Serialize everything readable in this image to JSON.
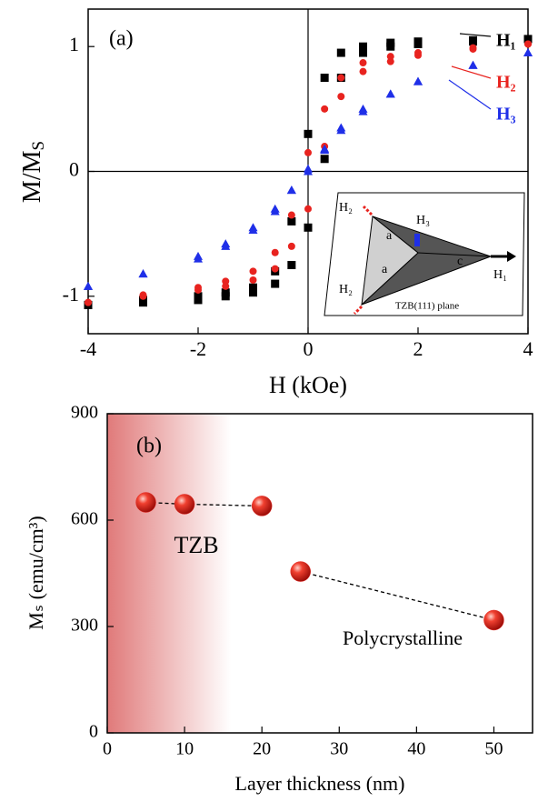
{
  "chart_data": [
    {
      "type": "scatter",
      "label": "(a)",
      "x_label": "H (kOe)",
      "y_label": [
        "M/M",
        "S"
      ],
      "xlim": [
        -4,
        4
      ],
      "xticks": [
        -4,
        -2,
        0,
        2,
        4
      ],
      "ylim": [
        -1.3,
        1.3
      ],
      "yticks": [
        -1,
        0,
        1
      ],
      "zero_lines": true,
      "series": [
        {
          "name": "H₁",
          "color": "#000000",
          "marker": "square",
          "x": [
            -4,
            -3,
            -2,
            -1.5,
            -1,
            -0.6,
            -0.3,
            0,
            0.3,
            0.6,
            1,
            1.5,
            2,
            3,
            4,
            4,
            3,
            2,
            1.5,
            1,
            0.6,
            0.3,
            0,
            -0.3,
            -0.6,
            -1,
            -1.5,
            -2,
            -3,
            -4
          ],
          "values": [
            -1.07,
            -1.05,
            -1.03,
            -1.0,
            -0.97,
            -0.9,
            -0.75,
            -0.45,
            0.1,
            0.75,
            0.95,
            1.0,
            1.02,
            1.04,
            1.06,
            1.06,
            1.05,
            1.04,
            1.03,
            1.0,
            0.95,
            0.75,
            0.3,
            -0.4,
            -0.8,
            -0.93,
            -0.97,
            -1.0,
            -1.03,
            -1.07
          ]
        },
        {
          "name": "H₂",
          "color": "#e8231f",
          "marker": "circle",
          "x": [
            -4,
            -3,
            -2,
            -1.5,
            -1,
            -0.6,
            -0.3,
            0,
            0.3,
            0.6,
            1,
            1.5,
            2,
            3,
            4,
            4,
            3,
            2,
            1.5,
            1,
            0.6,
            0.3,
            0,
            -0.3,
            -0.6,
            -1,
            -1.5,
            -2,
            -3,
            -4
          ],
          "values": [
            -1.05,
            -1.0,
            -0.95,
            -0.92,
            -0.87,
            -0.78,
            -0.6,
            -0.3,
            0.2,
            0.6,
            0.8,
            0.88,
            0.93,
            0.98,
            1.02,
            1.02,
            0.99,
            0.95,
            0.92,
            0.87,
            0.75,
            0.5,
            0.15,
            -0.35,
            -0.65,
            -0.8,
            -0.88,
            -0.93,
            -0.99,
            -1.05
          ]
        },
        {
          "name": "H₃",
          "color": "#1f2fe8",
          "marker": "triangle",
          "x": [
            -4,
            -3,
            -2,
            -1.5,
            -1,
            -0.6,
            -0.3,
            0,
            0.3,
            0.6,
            1,
            1.5,
            2,
            3,
            4,
            4,
            3,
            2,
            1.5,
            1,
            0.6,
            0.3,
            0,
            -0.3,
            -0.6,
            -1,
            -1.5,
            -2,
            -3,
            -4
          ],
          "values": [
            -0.92,
            -0.82,
            -0.68,
            -0.58,
            -0.45,
            -0.3,
            -0.15,
            0.0,
            0.18,
            0.35,
            0.5,
            0.62,
            0.72,
            0.85,
            0.95,
            0.95,
            0.85,
            0.72,
            0.62,
            0.48,
            0.33,
            0.17,
            0.02,
            -0.15,
            -0.32,
            -0.47,
            -0.6,
            -0.7,
            -0.82,
            -0.92
          ]
        }
      ],
      "inset_labels": [
        "H₂",
        "H₃",
        "a",
        "a",
        "c",
        "H₁",
        "H₂",
        "TZB(111) plane"
      ]
    },
    {
      "type": "scatter",
      "label": "(b)",
      "x_label": "Layer thickness (nm)",
      "y_label": "Mₛ (emu/cm³)",
      "xlim": [
        0,
        55
      ],
      "xticks": [
        0,
        10,
        20,
        30,
        40,
        50
      ],
      "ylim": [
        0,
        900
      ],
      "yticks": [
        0,
        300,
        600,
        900
      ],
      "shade_xlim": [
        0,
        16
      ],
      "line_style": "dashed",
      "series": [
        {
          "color": "#e8302a",
          "marker": "sphere",
          "x": [
            5,
            10,
            20
          ],
          "values": [
            650,
            645,
            640
          ]
        },
        {
          "color": "#e8302a",
          "marker": "sphere",
          "x": [
            25,
            50
          ],
          "values": [
            455,
            318
          ]
        }
      ],
      "annotations": [
        "TZB",
        "Polycrystalline"
      ]
    }
  ]
}
